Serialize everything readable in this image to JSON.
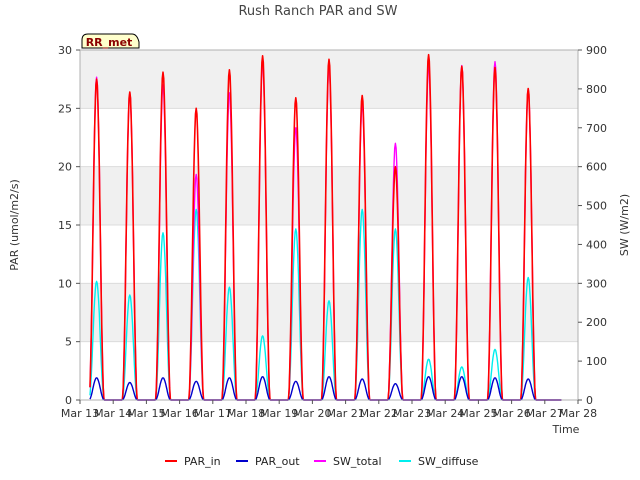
{
  "chart_data": {
    "type": "line",
    "title": "Rush Ranch PAR and SW",
    "xlabel": "Time",
    "ylabel_left": "PAR (umol/m2/s)",
    "ylabel_right": "SW (W/m2)",
    "ylim_left": [
      0,
      30
    ],
    "ylim_right": [
      0,
      900
    ],
    "xlim_days": [
      13,
      28
    ],
    "y_ticks_left": [
      0,
      5,
      10,
      15,
      20,
      25,
      30
    ],
    "y_ticks_right": [
      0,
      100,
      200,
      300,
      400,
      500,
      600,
      700,
      800,
      900
    ],
    "x_ticks": [
      {
        "day": 13,
        "label": "Mar 13"
      },
      {
        "day": 14,
        "label": "Mar 14"
      },
      {
        "day": 15,
        "label": "Mar 15"
      },
      {
        "day": 16,
        "label": "Mar 16"
      },
      {
        "day": 17,
        "label": "Mar 17"
      },
      {
        "day": 18,
        "label": "Mar 18"
      },
      {
        "day": 19,
        "label": "Mar 19"
      },
      {
        "day": 20,
        "label": "Mar 20"
      },
      {
        "day": 21,
        "label": "Mar 21"
      },
      {
        "day": 22,
        "label": "Mar 22"
      },
      {
        "day": 23,
        "label": "Mar 23"
      },
      {
        "day": 24,
        "label": "Mar 24"
      },
      {
        "day": 25,
        "label": "Mar 25"
      },
      {
        "day": 26,
        "label": "Mar 26"
      },
      {
        "day": 27,
        "label": "Mar 27"
      },
      {
        "day": 28,
        "label": "Mar 28"
      }
    ],
    "site_label": "RR_met",
    "series": [
      {
        "name": "PAR_in",
        "axis": "left",
        "color": "#ff0000",
        "daily": [
          {
            "day": 13,
            "peaks": [
              {
                "h": 12.0,
                "v": 27.5
              }
            ]
          },
          {
            "day": 14,
            "peaks": [
              {
                "h": 12.0,
                "v": 26.4
              }
            ]
          },
          {
            "day": 15,
            "peaks": [
              {
                "h": 12.0,
                "v": 28.1
              }
            ]
          },
          {
            "day": 16,
            "peaks": [
              {
                "h": 12.0,
                "v": 25.0
              }
            ]
          },
          {
            "day": 17,
            "peaks": [
              {
                "h": 12.0,
                "v": 28.3
              }
            ]
          },
          {
            "day": 18,
            "peaks": [
              {
                "h": 12.0,
                "v": 29.5
              }
            ]
          },
          {
            "day": 19,
            "peaks": [
              {
                "h": 12.0,
                "v": 25.9
              }
            ]
          },
          {
            "day": 20,
            "peaks": [
              {
                "h": 12.0,
                "v": 29.2
              }
            ]
          },
          {
            "day": 21,
            "peaks": [
              {
                "h": 12.0,
                "v": 26.1
              }
            ]
          },
          {
            "day": 22,
            "peaks": [
              {
                "h": 12.0,
                "v": 20.0
              }
            ]
          },
          {
            "day": 23,
            "peaks": [
              {
                "h": 12.0,
                "v": 29.6
              }
            ]
          },
          {
            "day": 24,
            "peaks": [
              {
                "h": 12.0,
                "v": 28.6
              }
            ]
          },
          {
            "day": 25,
            "peaks": [
              {
                "h": 12.0,
                "v": 28.5
              }
            ]
          },
          {
            "day": 26,
            "peaks": [
              {
                "h": 12.0,
                "v": 26.7
              }
            ]
          }
        ]
      },
      {
        "name": "PAR_out",
        "axis": "left",
        "color": "#0000cc",
        "daily": [
          {
            "day": 13,
            "peaks": [
              {
                "h": 12.0,
                "v": 1.9
              }
            ]
          },
          {
            "day": 14,
            "peaks": [
              {
                "h": 12.0,
                "v": 1.5
              }
            ]
          },
          {
            "day": 15,
            "peaks": [
              {
                "h": 12.0,
                "v": 1.9
              }
            ]
          },
          {
            "day": 16,
            "peaks": [
              {
                "h": 12.0,
                "v": 1.6
              }
            ]
          },
          {
            "day": 17,
            "peaks": [
              {
                "h": 12.0,
                "v": 1.9
              }
            ]
          },
          {
            "day": 18,
            "peaks": [
              {
                "h": 12.0,
                "v": 2.0
              }
            ]
          },
          {
            "day": 19,
            "peaks": [
              {
                "h": 12.0,
                "v": 1.6
              }
            ]
          },
          {
            "day": 20,
            "peaks": [
              {
                "h": 12.0,
                "v": 2.0
              }
            ]
          },
          {
            "day": 21,
            "peaks": [
              {
                "h": 12.0,
                "v": 1.8
              }
            ]
          },
          {
            "day": 22,
            "peaks": [
              {
                "h": 12.0,
                "v": 1.4
              }
            ]
          },
          {
            "day": 23,
            "peaks": [
              {
                "h": 12.0,
                "v": 2.0
              }
            ]
          },
          {
            "day": 24,
            "peaks": [
              {
                "h": 12.0,
                "v": 2.0
              }
            ]
          },
          {
            "day": 25,
            "peaks": [
              {
                "h": 12.0,
                "v": 1.9
              }
            ]
          },
          {
            "day": 26,
            "peaks": [
              {
                "h": 12.0,
                "v": 1.8
              }
            ]
          }
        ]
      },
      {
        "name": "SW_total",
        "axis": "right",
        "color": "#ff00ff",
        "daily": [
          {
            "day": 13,
            "peaks": [
              {
                "h": 12.0,
                "v": 830
              }
            ]
          },
          {
            "day": 14,
            "peaks": [
              {
                "h": 12.0,
                "v": 790
              }
            ]
          },
          {
            "day": 15,
            "peaks": [
              {
                "h": 12.0,
                "v": 810
              }
            ]
          },
          {
            "day": 16,
            "peaks": [
              {
                "h": 12.0,
                "v": 580
              }
            ]
          },
          {
            "day": 17,
            "peaks": [
              {
                "h": 12.0,
                "v": 790
              }
            ]
          },
          {
            "day": 18,
            "peaks": [
              {
                "h": 12.0,
                "v": 870
              }
            ]
          },
          {
            "day": 19,
            "peaks": [
              {
                "h": 12.0,
                "v": 700
              }
            ]
          },
          {
            "day": 20,
            "peaks": [
              {
                "h": 12.0,
                "v": 860
              }
            ]
          },
          {
            "day": 21,
            "peaks": [
              {
                "h": 12.0,
                "v": 760
              }
            ]
          },
          {
            "day": 22,
            "peaks": [
              {
                "h": 12.0,
                "v": 660
              }
            ]
          },
          {
            "day": 23,
            "peaks": [
              {
                "h": 12.0,
                "v": 860
              }
            ]
          },
          {
            "day": 24,
            "peaks": [
              {
                "h": 12.0,
                "v": 860
              }
            ]
          },
          {
            "day": 25,
            "peaks": [
              {
                "h": 12.0,
                "v": 870
              }
            ]
          },
          {
            "day": 26,
            "peaks": [
              {
                "h": 12.0,
                "v": 800
              }
            ]
          }
        ]
      },
      {
        "name": "SW_diffuse",
        "axis": "right",
        "color": "#00eeee",
        "daily": [
          {
            "day": 13,
            "peaks": [
              {
                "h": 12.0,
                "v": 305
              }
            ]
          },
          {
            "day": 14,
            "peaks": [
              {
                "h": 12.0,
                "v": 270
              }
            ]
          },
          {
            "day": 15,
            "peaks": [
              {
                "h": 12.0,
                "v": 430
              }
            ]
          },
          {
            "day": 16,
            "peaks": [
              {
                "h": 12.0,
                "v": 490
              }
            ]
          },
          {
            "day": 17,
            "peaks": [
              {
                "h": 12.0,
                "v": 290
              }
            ]
          },
          {
            "day": 18,
            "peaks": [
              {
                "h": 12.0,
                "v": 165
              }
            ]
          },
          {
            "day": 19,
            "peaks": [
              {
                "h": 12.0,
                "v": 440
              }
            ]
          },
          {
            "day": 20,
            "peaks": [
              {
                "h": 12.0,
                "v": 255
              }
            ]
          },
          {
            "day": 21,
            "peaks": [
              {
                "h": 12.0,
                "v": 490
              }
            ]
          },
          {
            "day": 22,
            "peaks": [
              {
                "h": 12.0,
                "v": 440
              }
            ]
          },
          {
            "day": 23,
            "peaks": [
              {
                "h": 12.0,
                "v": 105
              }
            ]
          },
          {
            "day": 24,
            "peaks": [
              {
                "h": 12.0,
                "v": 85
              }
            ]
          },
          {
            "day": 25,
            "peaks": [
              {
                "h": 12.0,
                "v": 130
              }
            ]
          },
          {
            "day": 26,
            "peaks": [
              {
                "h": 12.0,
                "v": 315
              }
            ]
          }
        ]
      }
    ]
  }
}
